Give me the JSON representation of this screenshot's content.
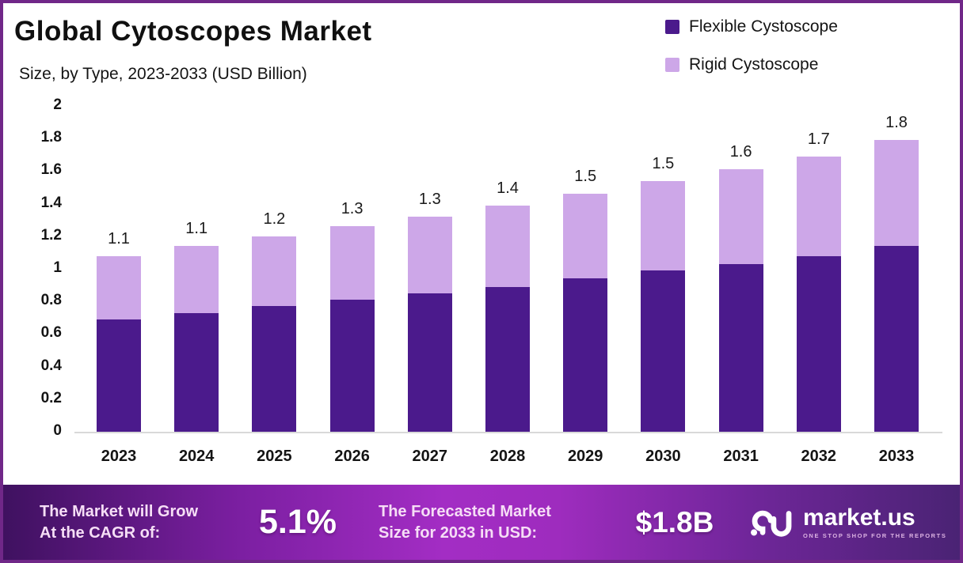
{
  "header": {
    "title": "Global Cytoscopes Market",
    "subtitle": "Size, by Type, 2023-2033 (USD Billion)"
  },
  "legend": [
    {
      "label": "Flexible Cystoscope",
      "color": "#4B1A8C"
    },
    {
      "label": "Rigid Cystoscope",
      "color": "#CDA7E8"
    }
  ],
  "chart_data": {
    "type": "bar",
    "stacked": true,
    "title": "Global Cytoscopes Market",
    "subtitle": "Size, by Type, 2023-2033 (USD Billion)",
    "categories": [
      "2023",
      "2024",
      "2025",
      "2026",
      "2027",
      "2028",
      "2029",
      "2030",
      "2031",
      "2032",
      "2033"
    ],
    "series": [
      {
        "name": "Flexible Cystoscope",
        "color": "#4B1A8C",
        "values": [
          0.69,
          0.73,
          0.77,
          0.81,
          0.85,
          0.89,
          0.94,
          0.99,
          1.03,
          1.08,
          1.14
        ]
      },
      {
        "name": "Rigid Cystoscope",
        "color": "#CDA7E8",
        "values": [
          0.39,
          0.41,
          0.43,
          0.45,
          0.47,
          0.5,
          0.52,
          0.55,
          0.58,
          0.61,
          0.65
        ]
      }
    ],
    "total_labels": [
      "1.1",
      "1.1",
      "1.2",
      "1.3",
      "1.3",
      "1.4",
      "1.5",
      "1.5",
      "1.6",
      "1.7",
      "1.8"
    ],
    "y_ticks": [
      "2",
      "1.8",
      "1.6",
      "1.4",
      "1.2",
      "1",
      "0.8",
      "0.6",
      "0.4",
      "0.2",
      "0"
    ],
    "ylim": [
      0,
      2
    ],
    "grid": false,
    "legend_position": "top-right",
    "unit": "USD Billion"
  },
  "footer": {
    "cagr_label_line1": "The Market will Grow",
    "cagr_label_line2": "At the CAGR of:",
    "cagr_value": "5.1%",
    "forecast_label_line1": "The Forecasted Market",
    "forecast_label_line2": "Size for 2033 in USD:",
    "forecast_value": "$1.8B",
    "brand": "market.us",
    "brand_tagline": "ONE STOP SHOP FOR THE REPORTS"
  },
  "colors": {
    "flexible": "#4B1A8C",
    "rigid": "#CDA7E8",
    "page_border": "#702788",
    "baseline": "#D9D9D9",
    "footer_gradient_left": "#3F1160",
    "footer_gradient_center": "#A32DC4",
    "footer_gradient_right": "#4A2374",
    "text": "#141414"
  }
}
